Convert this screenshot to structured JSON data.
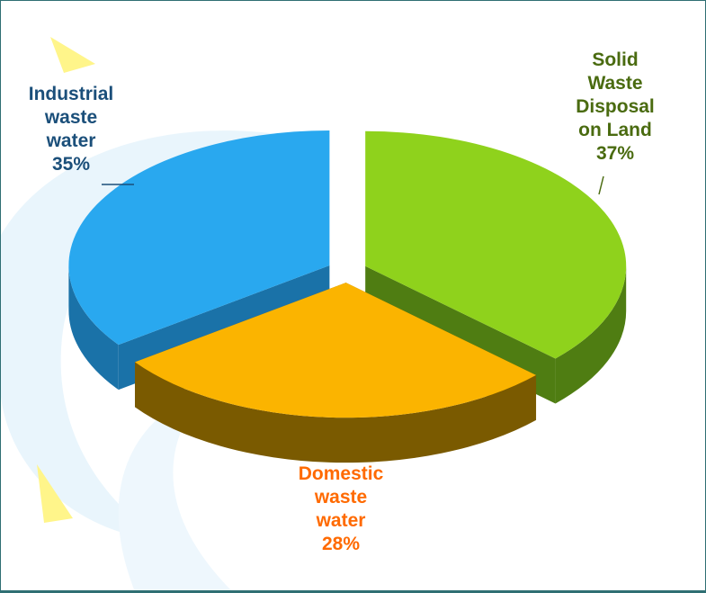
{
  "chart_data": {
    "type": "pie",
    "title": "",
    "categories": [
      "Solid Waste Disposal on Land",
      "Domestic waste water",
      "Industrial waste water"
    ],
    "values": [
      37,
      28,
      35
    ],
    "unit": "%",
    "colors": [
      "#8fd21c",
      "#fbb400",
      "#29a8ef"
    ],
    "side_colors": [
      "#4f7d12",
      "#7a5a00",
      "#1a72a8"
    ],
    "label_colors": [
      "#4a6b10",
      "#ff6a00",
      "#1b4f7a"
    ],
    "labels": [
      {
        "lines": [
          "Solid",
          "Waste",
          "Disposal",
          "on Land",
          "37%"
        ]
      },
      {
        "lines": [
          "Domestic",
          "waste",
          "water",
          "28%"
        ]
      },
      {
        "lines": [
          "Industrial",
          "waste",
          "water",
          "35%"
        ]
      }
    ],
    "style": "3d-exploded-pie",
    "legend": "none"
  },
  "background": {
    "frame_color": "#2f6f73",
    "decor_colors": [
      "#e6f3fb",
      "#fff27a"
    ]
  }
}
